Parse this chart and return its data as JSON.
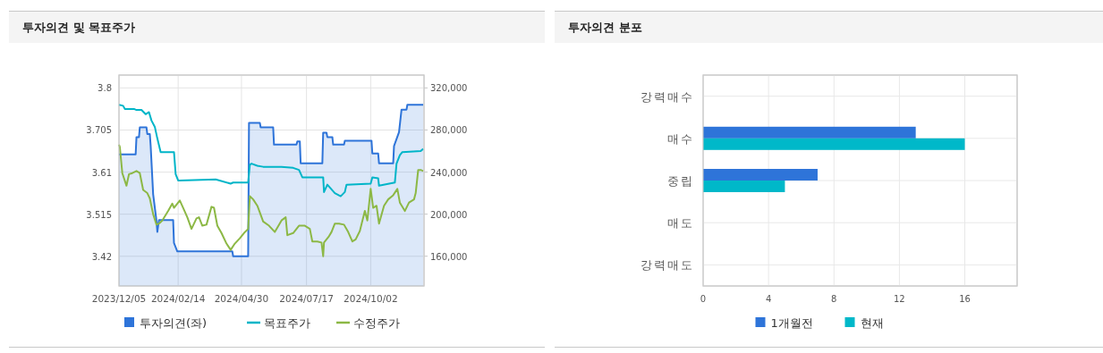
{
  "chart_data": [
    {
      "type": "line",
      "title": "투자의견 및 목표주가",
      "xlim": [
        "2023-12-05",
        "2024-12-05"
      ],
      "xticks": [
        {
          "value": "2023-12-05",
          "label": "2023/12/05"
        },
        {
          "value": "2024-02-14",
          "label": "2024/02/14"
        },
        {
          "value": "2024-04-30",
          "label": "2024/04/30"
        },
        {
          "value": "2024-07-17",
          "label": "2024/07/17"
        },
        {
          "value": "2024-10-02",
          "label": "2024/10/02"
        }
      ],
      "ylim": [
        3.353,
        3.829
      ],
      "yticks": [
        3.42,
        3.515,
        3.61,
        3.705,
        3.8
      ],
      "y2lim": [
        131700,
        332200
      ],
      "y2ticks": [
        {
          "value": 160000,
          "label": "160,000"
        },
        {
          "value": 200000,
          "label": "200,000"
        },
        {
          "value": 240000,
          "label": "240,000"
        },
        {
          "value": 280000,
          "label": "280,000"
        },
        {
          "value": 320000,
          "label": "320,000"
        }
      ],
      "grid": true,
      "legend": "bottom",
      "series": [
        {
          "name": "투자의견(좌)",
          "type": "area",
          "color": "#2e74d9",
          "x": [
            "2023-12-05",
            "2023-12-25",
            "2023-12-26",
            "2023-12-29",
            "2023-12-30",
            "2024-01-07",
            "2024-01-08",
            "2024-01-11",
            "2024-01-12",
            "2024-01-15",
            "2024-01-19",
            "2024-01-20",
            "2024-01-22",
            "2024-02-08",
            "2024-02-09",
            "2024-02-13",
            "2024-04-19",
            "2024-04-20",
            "2024-05-08",
            "2024-05-09",
            "2024-05-22",
            "2024-05-23",
            "2024-06-07",
            "2024-06-08",
            "2024-07-05",
            "2024-07-06",
            "2024-07-09",
            "2024-07-10",
            "2024-08-05",
            "2024-08-06",
            "2024-08-10",
            "2024-08-11",
            "2024-08-17",
            "2024-08-18",
            "2024-08-31",
            "2024-09-01",
            "2024-10-03",
            "2024-10-04",
            "2024-10-11",
            "2024-10-12",
            "2024-10-29",
            "2024-10-30",
            "2024-11-05",
            "2024-11-08",
            "2024-11-14",
            "2024-11-15",
            "2024-12-04"
          ],
          "values": [
            3.65,
            3.65,
            3.689,
            3.689,
            3.711,
            3.711,
            3.696,
            3.696,
            3.67,
            3.56,
            3.5,
            3.475,
            3.502,
            3.502,
            3.45,
            3.431,
            3.431,
            3.42,
            3.42,
            3.721,
            3.721,
            3.711,
            3.711,
            3.672,
            3.672,
            3.679,
            3.679,
            3.63,
            3.63,
            3.699,
            3.699,
            3.689,
            3.689,
            3.672,
            3.672,
            3.681,
            3.681,
            3.652,
            3.652,
            3.63,
            3.63,
            3.669,
            3.7,
            3.751,
            3.751,
            3.762,
            3.762
          ]
        },
        {
          "name": "목표주가",
          "type": "line",
          "axis": "y2",
          "color": "#00b5c8",
          "x": [
            "2023-12-05",
            "2023-12-10",
            "2023-12-12",
            "2023-12-23",
            "2023-12-26",
            "2024-01-01",
            "2024-01-06",
            "2024-01-10",
            "2024-01-13",
            "2024-01-17",
            "2024-01-20",
            "2024-01-24",
            "2024-02-09",
            "2024-02-11",
            "2024-02-14",
            "2024-02-16",
            "2024-03-30",
            "2024-04-17",
            "2024-04-20",
            "2024-05-08",
            "2024-05-10",
            "2024-05-12",
            "2024-05-19",
            "2024-05-26",
            "2024-06-17",
            "2024-07-01",
            "2024-07-08",
            "2024-07-12",
            "2024-08-06",
            "2024-08-07",
            "2024-08-11",
            "2024-08-20",
            "2024-08-27",
            "2024-09-01",
            "2024-09-03",
            "2024-10-02",
            "2024-10-04",
            "2024-10-11",
            "2024-10-12",
            "2024-10-31",
            "2024-11-02",
            "2024-11-06",
            "2024-11-09",
            "2024-12-01",
            "2024-12-04"
          ],
          "values": [
            304000,
            303000,
            300000,
            300000,
            299000,
            299000,
            295000,
            297000,
            289000,
            283000,
            272000,
            259000,
            259000,
            238000,
            232000,
            232000,
            233000,
            229000,
            230000,
            230000,
            247000,
            248000,
            246000,
            245000,
            245000,
            244000,
            242000,
            235000,
            235000,
            221000,
            228000,
            220000,
            217000,
            221000,
            228000,
            229000,
            235000,
            234000,
            227000,
            230000,
            248000,
            256000,
            259000,
            260000,
            262000
          ]
        },
        {
          "name": "수정주가",
          "type": "line",
          "axis": "y2",
          "color": "#8cb845",
          "x": [
            "2023-12-05",
            "2023-12-06",
            "2023-12-09",
            "2023-12-14",
            "2023-12-17",
            "2023-12-21",
            "2023-12-26",
            "2023-12-30",
            "2024-01-03",
            "2024-01-08",
            "2024-01-11",
            "2024-01-15",
            "2024-01-19",
            "2024-01-22",
            "2024-01-26",
            "2024-02-02",
            "2024-02-07",
            "2024-02-09",
            "2024-02-13",
            "2024-02-16",
            "2024-02-20",
            "2024-02-25",
            "2024-03-01",
            "2024-03-07",
            "2024-03-10",
            "2024-03-14",
            "2024-03-19",
            "2024-03-25",
            "2024-03-28",
            "2024-04-01",
            "2024-04-06",
            "2024-04-12",
            "2024-04-17",
            "2024-04-22",
            "2024-04-28",
            "2024-05-03",
            "2024-05-08",
            "2024-05-10",
            "2024-05-14",
            "2024-05-19",
            "2024-05-26",
            "2024-06-02",
            "2024-06-09",
            "2024-06-17",
            "2024-06-22",
            "2024-06-24",
            "2024-07-01",
            "2024-07-08",
            "2024-07-15",
            "2024-07-21",
            "2024-07-24",
            "2024-07-30",
            "2024-08-04",
            "2024-08-06",
            "2024-08-07",
            "2024-08-13",
            "2024-08-16",
            "2024-08-20",
            "2024-08-25",
            "2024-08-31",
            "2024-09-05",
            "2024-09-10",
            "2024-09-14",
            "2024-09-19",
            "2024-09-25",
            "2024-09-28",
            "2024-10-02",
            "2024-10-05",
            "2024-10-09",
            "2024-10-12",
            "2024-10-18",
            "2024-10-23",
            "2024-10-29",
            "2024-11-03",
            "2024-11-06",
            "2024-11-12",
            "2024-11-17",
            "2024-11-23",
            "2024-11-25",
            "2024-11-28",
            "2024-12-01",
            "2024-12-04"
          ],
          "values": [
            266000,
            264000,
            239000,
            227000,
            238000,
            239000,
            241000,
            239000,
            223000,
            220000,
            215000,
            200000,
            190000,
            191000,
            194000,
            203000,
            210000,
            206000,
            210000,
            213000,
            206000,
            197000,
            186000,
            196000,
            197000,
            189000,
            190000,
            207000,
            206000,
            189000,
            182000,
            172000,
            166000,
            172000,
            177000,
            182000,
            186000,
            217000,
            214000,
            208000,
            193000,
            189000,
            183000,
            194000,
            197000,
            180000,
            182000,
            189000,
            189000,
            186000,
            174000,
            174000,
            173000,
            160000,
            173000,
            179000,
            183000,
            191000,
            191000,
            190000,
            183000,
            174000,
            176000,
            184000,
            203000,
            194000,
            224000,
            206000,
            208000,
            191000,
            208000,
            214000,
            218000,
            224000,
            211000,
            203000,
            211000,
            214000,
            220000,
            242000,
            242000,
            241000
          ]
        }
      ]
    },
    {
      "type": "bar",
      "orientation": "horizontal",
      "title": "투자의견 분포",
      "categories": [
        "강력매수",
        "매수",
        "중립",
        "매도",
        "강력매도"
      ],
      "xlim": [
        0,
        19.2
      ],
      "xticks": [
        0,
        4,
        8,
        12,
        16
      ],
      "grid": true,
      "legend": "bottom",
      "series": [
        {
          "name": "1개월전",
          "color": "#2e74d9",
          "values": [
            0,
            13,
            7,
            0,
            0
          ]
        },
        {
          "name": "현재",
          "color": "#00b8c9",
          "values": [
            0,
            16,
            5,
            0,
            0
          ]
        }
      ]
    }
  ]
}
